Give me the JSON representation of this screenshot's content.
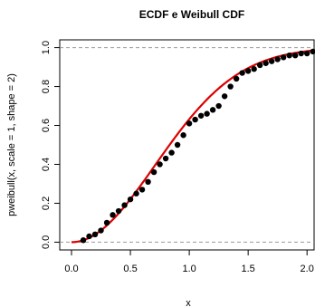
{
  "chart_data": {
    "type": "line",
    "title": "ECDF e Weibull CDF",
    "xlabel": "x",
    "ylabel": "pweibull(x, scale = 1, shape = 2)",
    "xlim": [
      -0.1,
      2.06
    ],
    "ylim": [
      -0.04,
      1.04
    ],
    "x_ticks": [
      "0.0",
      "0.5",
      "1.0",
      "1.5",
      "2.0"
    ],
    "y_ticks": [
      "0.0",
      "0.2",
      "0.4",
      "0.6",
      "0.8",
      "1.0"
    ],
    "reference_lines_y": [
      0,
      1
    ],
    "series": [
      {
        "kind": "ecdf-points",
        "color": "#000000",
        "x": [
          0.1,
          0.15,
          0.2,
          0.25,
          0.3,
          0.35,
          0.4,
          0.45,
          0.5,
          0.55,
          0.6,
          0.65,
          0.7,
          0.75,
          0.8,
          0.85,
          0.9,
          0.95,
          1.0,
          1.05,
          1.1,
          1.15,
          1.2,
          1.25,
          1.3,
          1.35,
          1.4,
          1.45,
          1.5,
          1.55,
          1.6,
          1.65,
          1.7,
          1.75,
          1.8,
          1.85,
          1.9,
          1.95,
          2.0,
          2.05
        ],
        "y": [
          0.01,
          0.03,
          0.04,
          0.06,
          0.1,
          0.14,
          0.16,
          0.19,
          0.22,
          0.25,
          0.27,
          0.31,
          0.36,
          0.4,
          0.43,
          0.46,
          0.5,
          0.55,
          0.61,
          0.63,
          0.65,
          0.66,
          0.68,
          0.7,
          0.75,
          0.8,
          0.84,
          0.87,
          0.88,
          0.89,
          0.91,
          0.92,
          0.93,
          0.94,
          0.95,
          0.96,
          0.96,
          0.97,
          0.97,
          0.98
        ]
      },
      {
        "kind": "cdf-curve",
        "color": "#dd0000",
        "formula": "1 - exp(-x^2)",
        "x_range": [
          0,
          2.06
        ]
      }
    ]
  }
}
